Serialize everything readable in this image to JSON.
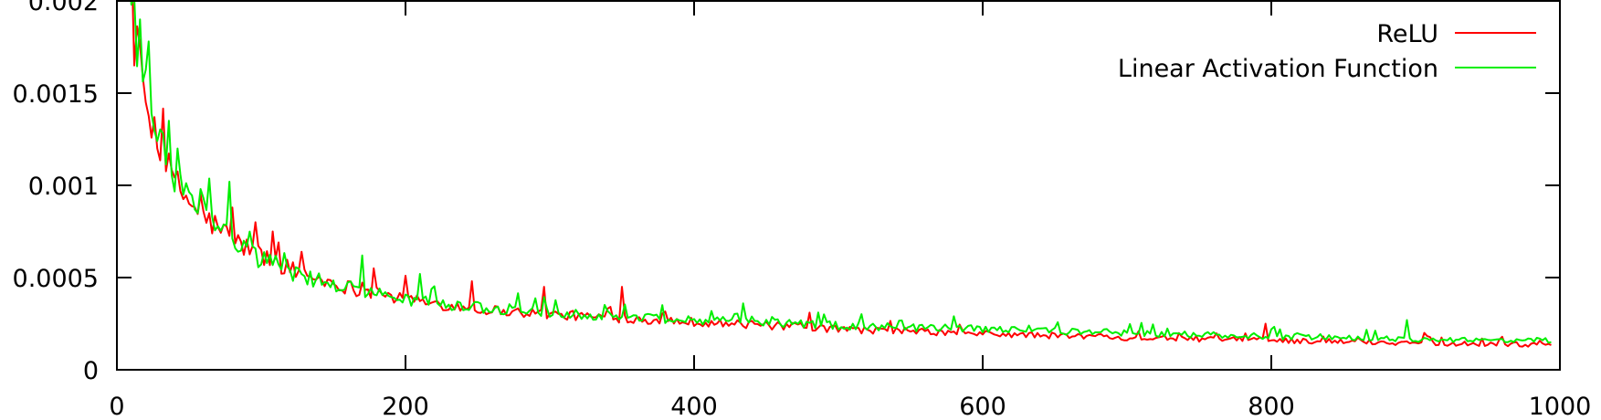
{
  "chart_data": {
    "type": "line",
    "title": "",
    "xlabel": "",
    "ylabel": "",
    "xlim": [
      0,
      1000
    ],
    "ylim": [
      0,
      0.002
    ],
    "grid": false,
    "legend_position": "top-right",
    "x_ticks": [
      {
        "value": 0,
        "label": "0"
      },
      {
        "value": 200,
        "label": "200"
      },
      {
        "value": 400,
        "label": "400"
      },
      {
        "value": 600,
        "label": "600"
      },
      {
        "value": 800,
        "label": "800"
      },
      {
        "value": 1000,
        "label": "1000"
      }
    ],
    "y_ticks": [
      {
        "value": 0,
        "label": "0"
      },
      {
        "value": 0.0005,
        "label": "0.0005"
      },
      {
        "value": 0.001,
        "label": "0.001"
      },
      {
        "value": 0.0015,
        "label": "0.0015"
      },
      {
        "value": 0.002,
        "label": "0.002"
      }
    ],
    "series": [
      {
        "name": "ReLU",
        "color": "#ff0000",
        "x": [
          0,
          10,
          20,
          30,
          40,
          50,
          60,
          70,
          80,
          90,
          100,
          125,
          150,
          175,
          200,
          250,
          300,
          350,
          400,
          450,
          500,
          600,
          700,
          800,
          900,
          1000
        ],
        "values": [
          0.003,
          0.0019,
          0.00145,
          0.00118,
          0.00102,
          0.00091,
          0.00083,
          0.00077,
          0.00071,
          0.00066,
          0.00062,
          0.00053,
          0.00047,
          0.00042,
          0.00038,
          0.00033,
          0.0003,
          0.00028,
          0.00026,
          0.00024,
          0.00022,
          0.000195,
          0.000175,
          0.00016,
          0.000145,
          0.000135
        ],
        "spikes": [
          [
            12,
            0.00165
          ],
          [
            28,
            0.0012
          ],
          [
            58,
            0.00095
          ],
          [
            80,
            0.00088
          ],
          [
            95,
            0.0008
          ],
          [
            108,
            0.00075
          ],
          [
            128,
            0.00064
          ],
          [
            178,
            0.00055
          ],
          [
            200,
            0.00051
          ],
          [
            245,
            0.00048
          ],
          [
            295,
            0.00045
          ],
          [
            349,
            0.00045
          ],
          [
            480,
            0.00031
          ],
          [
            796,
            0.00025
          ],
          [
            905,
            0.0002
          ]
        ]
      },
      {
        "name": "Linear Activation Function",
        "color": "#00ee00",
        "x": [
          0,
          10,
          20,
          30,
          40,
          50,
          60,
          70,
          80,
          90,
          100,
          125,
          150,
          175,
          200,
          250,
          300,
          350,
          400,
          450,
          500,
          600,
          700,
          800,
          900,
          1000
        ],
        "values": [
          0.0031,
          0.00195,
          0.0015,
          0.00122,
          0.00104,
          0.00092,
          0.00083,
          0.00076,
          0.0007,
          0.00065,
          0.0006,
          0.00052,
          0.00046,
          0.00042,
          0.00038,
          0.00034,
          0.00031,
          0.00029,
          0.00027,
          0.000255,
          0.00024,
          0.00022,
          0.0002,
          0.00018,
          0.000165,
          0.00016
        ],
        "spikes": [
          [
            15,
            0.0019
          ],
          [
            22,
            0.00178
          ],
          [
            36,
            0.00135
          ],
          [
            42,
            0.0012
          ],
          [
            58,
            0.00098
          ],
          [
            78,
            0.00102
          ],
          [
            170,
            0.00062
          ],
          [
            210,
            0.00052
          ],
          [
            370,
            0.0003
          ],
          [
            433,
            0.00036
          ],
          [
            580,
            0.00029
          ],
          [
            893,
            0.00027
          ]
        ]
      }
    ]
  }
}
